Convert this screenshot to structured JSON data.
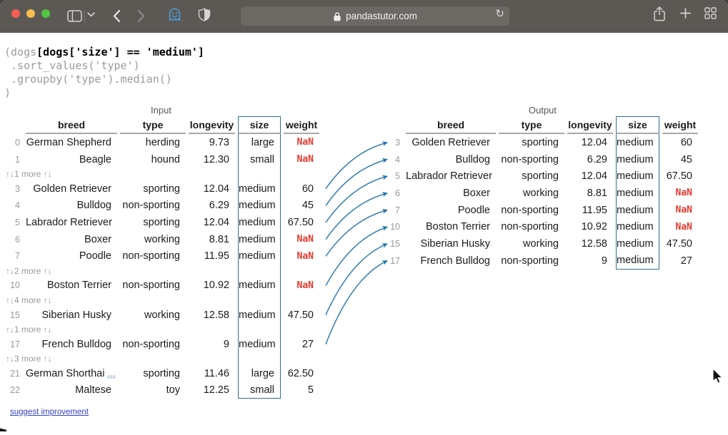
{
  "browser": {
    "url": "pandastutor.com",
    "window_buttons": [
      "close",
      "minimize",
      "fullscreen"
    ],
    "toolbar_icons": [
      "sidebar-toggle",
      "sidebar-chevron",
      "back",
      "forward",
      "ghostery-extension",
      "privacy-shield",
      "padlock",
      "reload",
      "share",
      "new-tab",
      "tab-overview"
    ]
  },
  "code": {
    "l1_dim": "(dogs",
    "l1_bold": "[dogs['size'] == 'medium']",
    "l2": " .sort_values('type')",
    "l3": " .groupby('type').median()",
    "l4": ")"
  },
  "ui": {
    "hidden_rows_arrows": "↑↓"
  },
  "input_table": {
    "label": "Input",
    "columns": [
      "breed",
      "type",
      "longevity",
      "size",
      "weight"
    ],
    "highlighted_column": "size",
    "rows": [
      {
        "index": "0",
        "breed": "German Shepherd",
        "type": "herding",
        "longevity": "9.73",
        "size": "large",
        "weight": "NaN"
      },
      {
        "index": "1",
        "breed": "Beagle",
        "type": "hound",
        "longevity": "12.30",
        "size": "small",
        "weight": "NaN"
      },
      {
        "more": "1 more"
      },
      {
        "index": "3",
        "breed": "Golden Retriever",
        "type": "sporting",
        "longevity": "12.04",
        "size": "medium",
        "weight": "60"
      },
      {
        "index": "4",
        "breed": "Bulldog",
        "type": "non-sporting",
        "longevity": "6.29",
        "size": "medium",
        "weight": "45"
      },
      {
        "index": "5",
        "breed": "Labrador Retriever",
        "type": "sporting",
        "longevity": "12.04",
        "size": "medium",
        "weight": "67.50"
      },
      {
        "index": "6",
        "breed": "Boxer",
        "type": "working",
        "longevity": "8.81",
        "size": "medium",
        "weight": "NaN"
      },
      {
        "index": "7",
        "breed": "Poodle",
        "type": "non-sporting",
        "longevity": "11.95",
        "size": "medium",
        "weight": "NaN"
      },
      {
        "more": "2 more"
      },
      {
        "index": "10",
        "breed": "Boston Terrier",
        "type": "non-sporting",
        "longevity": "10.92",
        "size": "medium",
        "weight": "NaN"
      },
      {
        "more": "4 more"
      },
      {
        "index": "15",
        "breed": "Siberian Husky",
        "type": "working",
        "longevity": "12.58",
        "size": "medium",
        "weight": "47.50"
      },
      {
        "more": "1 more"
      },
      {
        "index": "17",
        "breed": "French Bulldog",
        "type": "non-sporting",
        "longevity": "9",
        "size": "medium",
        "weight": "27"
      },
      {
        "more": "3 more"
      },
      {
        "index": "21",
        "breed": "German Shorthai",
        "ellipsis": "...",
        "type": "sporting",
        "longevity": "11.46",
        "size": "large",
        "weight": "62.50"
      },
      {
        "index": "22",
        "breed": "Maltese",
        "type": "toy",
        "longevity": "12.25",
        "size": "small",
        "weight": "5"
      }
    ]
  },
  "output_table": {
    "label": "Output",
    "columns": [
      "breed",
      "type",
      "longevity",
      "size",
      "weight"
    ],
    "highlighted_column": "size",
    "rows": [
      {
        "index": "3",
        "breed": "Golden Retriever",
        "type": "sporting",
        "longevity": "12.04",
        "size": "medium",
        "weight": "60"
      },
      {
        "index": "4",
        "breed": "Bulldog",
        "type": "non-sporting",
        "longevity": "6.29",
        "size": "medium",
        "weight": "45"
      },
      {
        "index": "5",
        "breed": "Labrador Retriever",
        "type": "sporting",
        "longevity": "12.04",
        "size": "medium",
        "weight": "67.50"
      },
      {
        "index": "6",
        "breed": "Boxer",
        "type": "working",
        "longevity": "8.81",
        "size": "medium",
        "weight": "NaN"
      },
      {
        "index": "7",
        "breed": "Poodle",
        "type": "non-sporting",
        "longevity": "11.95",
        "size": "medium",
        "weight": "NaN"
      },
      {
        "index": "10",
        "breed": "Boston Terrier",
        "type": "non-sporting",
        "longevity": "10.92",
        "size": "medium",
        "weight": "NaN"
      },
      {
        "index": "15",
        "breed": "Siberian Husky",
        "type": "working",
        "longevity": "12.58",
        "size": "medium",
        "weight": "47.50"
      },
      {
        "index": "17",
        "breed": "French Bulldog",
        "type": "non-sporting",
        "longevity": "9",
        "size": "medium",
        "weight": "27"
      }
    ]
  },
  "row_mappings": [
    {
      "from": "3",
      "to": "3"
    },
    {
      "from": "4",
      "to": "4"
    },
    {
      "from": "5",
      "to": "5"
    },
    {
      "from": "6",
      "to": "6"
    },
    {
      "from": "7",
      "to": "7"
    },
    {
      "from": "10",
      "to": "10"
    },
    {
      "from": "15",
      "to": "15"
    },
    {
      "from": "17",
      "to": "17"
    }
  ],
  "footer": {
    "link_label": "suggest improvement"
  },
  "colors": {
    "highlight_box_blue": "#31708f",
    "arrow_blue": "#2474ad",
    "nan_red": "#e8392e",
    "link_blue": "#3642c0",
    "traffic_red": "#f55e53",
    "traffic_yellow": "#f6bd4f",
    "traffic_green": "#53c442"
  }
}
